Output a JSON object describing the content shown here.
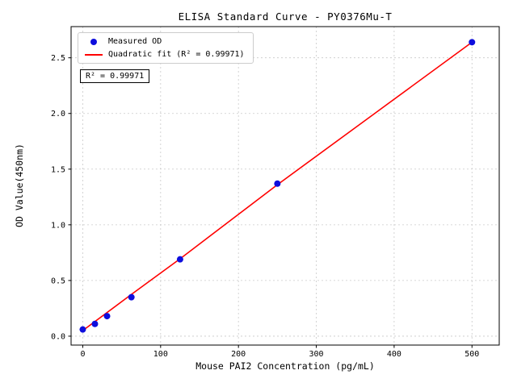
{
  "chart_data": {
    "type": "scatter",
    "title": "ELISA Standard Curve - PY0376Mu-T",
    "xlabel": "Mouse PAI2 Concentration (pg/mL)",
    "ylabel": "OD Value(450nm)",
    "xlim": [
      -15,
      535
    ],
    "ylim": [
      -0.08,
      2.78
    ],
    "xticks": [
      0,
      100,
      200,
      300,
      400,
      500
    ],
    "xtick_labels": [
      "0",
      "100",
      "200",
      "300",
      "400",
      "500"
    ],
    "yticks": [
      0.0,
      0.5,
      1.0,
      1.5,
      2.0,
      2.5
    ],
    "ytick_labels": [
      "0.0",
      "0.5",
      "1.0",
      "1.5",
      "2.0",
      "2.5"
    ],
    "grid": true,
    "legend_position": "upper left",
    "annotation": "R² = 0.99971",
    "series": [
      {
        "name": "Measured OD",
        "type": "scatter",
        "color": "#0e0edd",
        "x": [
          0,
          15.6,
          31.2,
          62.5,
          125,
          250,
          500
        ],
        "y": [
          0.06,
          0.11,
          0.18,
          0.35,
          0.69,
          1.37,
          2.64
        ]
      },
      {
        "name": "Quadratic fit (R² = 0.99971)",
        "type": "line",
        "color": "#ff0000",
        "x": [
          0,
          62.5,
          125,
          250,
          375,
          500
        ],
        "y": [
          0.05,
          0.375,
          0.695,
          1.36,
          2.0,
          2.64
        ]
      }
    ]
  }
}
